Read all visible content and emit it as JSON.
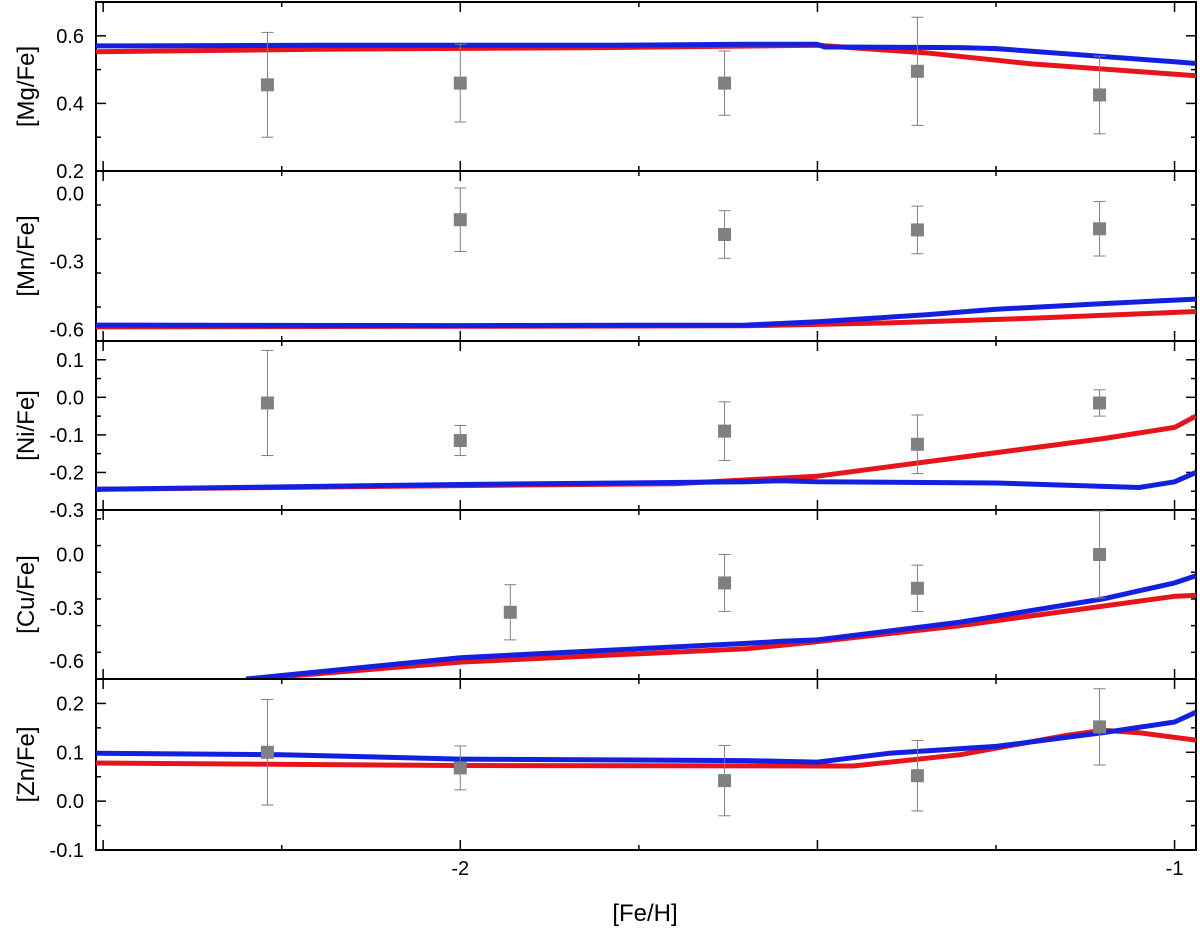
{
  "chart_data": {
    "type": "scatter",
    "xlabel": "[Fe/H]",
    "xlim": [
      -2.51,
      -0.97
    ],
    "xticks": [
      -2,
      -1
    ],
    "x_tick_labels": [
      "-2",
      "-1"
    ],
    "series_colors": {
      "model_red": "#e8141b",
      "model_blue": "#1420e0",
      "observations": "#808080"
    },
    "panels": [
      {
        "ylabel": "[Mg/Fe]",
        "ylim": [
          0.2,
          0.7
        ],
        "yticks": [
          0.2,
          0.4,
          0.6
        ],
        "y_tick_labels": [
          "0.2",
          "0.4",
          "0.6"
        ],
        "observations": [
          {
            "x": -2.27,
            "y": 0.455,
            "err": 0.155
          },
          {
            "x": -2.0,
            "y": 0.46,
            "err": 0.115
          },
          {
            "x": -1.63,
            "y": 0.46,
            "err": 0.095
          },
          {
            "x": -1.36,
            "y": 0.495,
            "err": 0.16
          },
          {
            "x": -1.105,
            "y": 0.425,
            "err": 0.115
          }
        ],
        "red_line": [
          [
            -2.51,
            0.553
          ],
          [
            -2.2,
            0.56
          ],
          [
            -1.8,
            0.565
          ],
          [
            -1.5,
            0.572
          ],
          [
            -1.35,
            0.55
          ],
          [
            -1.2,
            0.517
          ],
          [
            -0.97,
            0.482
          ]
        ],
        "blue_line": [
          [
            -2.51,
            0.57
          ],
          [
            -2.2,
            0.572
          ],
          [
            -1.8,
            0.572
          ],
          [
            -1.6,
            0.575
          ],
          [
            -1.5,
            0.575
          ],
          [
            -1.49,
            0.567
          ],
          [
            -1.3,
            0.565
          ],
          [
            -1.25,
            0.562
          ],
          [
            -1.0,
            0.523
          ],
          [
            -0.97,
            0.518
          ]
        ]
      },
      {
        "ylabel": "[Mn/Fe]",
        "ylim": [
          -0.65,
          0.1
        ],
        "yticks": [
          -0.6,
          -0.3,
          0.0
        ],
        "y_tick_labels": [
          "-0.6",
          "-0.3",
          "0.0"
        ],
        "observations": [
          {
            "x": -2.0,
            "y": -0.115,
            "err": 0.14
          },
          {
            "x": -1.63,
            "y": -0.18,
            "err": 0.105
          },
          {
            "x": -1.36,
            "y": -0.16,
            "err": 0.105
          },
          {
            "x": -1.105,
            "y": -0.155,
            "err": 0.12
          }
        ],
        "red_line": [
          [
            -2.51,
            -0.588
          ],
          [
            -2.0,
            -0.585
          ],
          [
            -1.6,
            -0.583
          ],
          [
            -1.4,
            -0.57
          ],
          [
            -1.2,
            -0.55
          ],
          [
            -0.97,
            -0.52
          ]
        ],
        "blue_line": [
          [
            -2.51,
            -0.58
          ],
          [
            -2.0,
            -0.582
          ],
          [
            -1.6,
            -0.58
          ],
          [
            -1.5,
            -0.565
          ],
          [
            -1.35,
            -0.535
          ],
          [
            -1.25,
            -0.51
          ],
          [
            -1.1,
            -0.485
          ],
          [
            -0.97,
            -0.465
          ]
        ]
      },
      {
        "ylabel": "[Ni/Fe]",
        "ylim": [
          -0.3,
          0.15
        ],
        "yticks": [
          -0.3,
          -0.2,
          -0.1,
          0.0,
          0.1
        ],
        "y_tick_labels": [
          "-0.3",
          "-0.2",
          "-0.1",
          "0.0",
          "0.1"
        ],
        "observations": [
          {
            "x": -2.27,
            "y": -0.015,
            "err": 0.14
          },
          {
            "x": -2.0,
            "y": -0.115,
            "err": 0.04
          },
          {
            "x": -1.63,
            "y": -0.09,
            "err": 0.078
          },
          {
            "x": -1.36,
            "y": -0.125,
            "err": 0.078
          },
          {
            "x": -1.105,
            "y": -0.015,
            "err": 0.035
          }
        ],
        "red_line": [
          [
            -2.51,
            -0.245
          ],
          [
            -2.0,
            -0.235
          ],
          [
            -1.7,
            -0.23
          ],
          [
            -1.5,
            -0.21
          ],
          [
            -1.3,
            -0.16
          ],
          [
            -1.1,
            -0.11
          ],
          [
            -1.0,
            -0.08
          ],
          [
            -0.97,
            -0.05
          ]
        ],
        "blue_line": [
          [
            -2.51,
            -0.245
          ],
          [
            -2.0,
            -0.232
          ],
          [
            -1.6,
            -0.225
          ],
          [
            -1.55,
            -0.222
          ],
          [
            -1.5,
            -0.225
          ],
          [
            -1.25,
            -0.228
          ],
          [
            -1.05,
            -0.24
          ],
          [
            -1.0,
            -0.225
          ],
          [
            -0.97,
            -0.2
          ]
        ]
      },
      {
        "ylabel": "[Cu/Fe]",
        "ylim": [
          -0.7,
          0.25
        ],
        "yticks": [
          -0.6,
          -0.3,
          0.0
        ],
        "y_tick_labels": [
          "-0.6",
          "-0.3",
          "0.0"
        ],
        "observations": [
          {
            "x": -1.93,
            "y": -0.325,
            "err": 0.155
          },
          {
            "x": -1.63,
            "y": -0.16,
            "err": 0.16
          },
          {
            "x": -1.36,
            "y": -0.19,
            "err": 0.13
          },
          {
            "x": -1.105,
            "y": 0.0,
            "err": 0.245
          }
        ],
        "red_line": [
          [
            -2.26,
            -0.69
          ],
          [
            -2.0,
            -0.605
          ],
          [
            -1.6,
            -0.53
          ],
          [
            -1.5,
            -0.49
          ],
          [
            -1.3,
            -0.4
          ],
          [
            -1.1,
            -0.29
          ],
          [
            -1.0,
            -0.235
          ],
          [
            -0.97,
            -0.23
          ]
        ],
        "blue_line": [
          [
            -2.3,
            -0.7
          ],
          [
            -2.0,
            -0.58
          ],
          [
            -1.8,
            -0.54
          ],
          [
            -1.6,
            -0.5
          ],
          [
            -1.55,
            -0.488
          ],
          [
            -1.5,
            -0.48
          ],
          [
            -1.3,
            -0.38
          ],
          [
            -1.1,
            -0.25
          ],
          [
            -1.0,
            -0.16
          ],
          [
            -0.97,
            -0.12
          ]
        ]
      },
      {
        "ylabel": "[Zn/Fe]",
        "ylim": [
          -0.1,
          0.25
        ],
        "yticks": [
          -0.1,
          0.0,
          0.1,
          0.2
        ],
        "y_tick_labels": [
          "-0.1",
          "0.0",
          "0.1",
          "0.2"
        ],
        "observations": [
          {
            "x": -2.27,
            "y": 0.1,
            "err": 0.108
          },
          {
            "x": -2.0,
            "y": 0.068,
            "err": 0.045
          },
          {
            "x": -1.63,
            "y": 0.042,
            "err": 0.072
          },
          {
            "x": -1.36,
            "y": 0.052,
            "err": 0.072
          },
          {
            "x": -1.105,
            "y": 0.152,
            "err": 0.078
          }
        ],
        "red_line": [
          [
            -2.51,
            0.078
          ],
          [
            -2.0,
            0.073
          ],
          [
            -1.5,
            0.072
          ],
          [
            -1.45,
            0.072
          ],
          [
            -1.3,
            0.095
          ],
          [
            -1.15,
            0.135
          ],
          [
            -1.1,
            0.145
          ],
          [
            -1.05,
            0.14
          ],
          [
            -0.97,
            0.125
          ]
        ],
        "blue_line": [
          [
            -2.51,
            0.098
          ],
          [
            -2.25,
            0.095
          ],
          [
            -2.0,
            0.086
          ],
          [
            -1.6,
            0.083
          ],
          [
            -1.5,
            0.08
          ],
          [
            -1.4,
            0.098
          ],
          [
            -1.25,
            0.112
          ],
          [
            -1.1,
            0.14
          ],
          [
            -1.0,
            0.162
          ],
          [
            -0.97,
            0.182
          ]
        ]
      }
    ]
  }
}
